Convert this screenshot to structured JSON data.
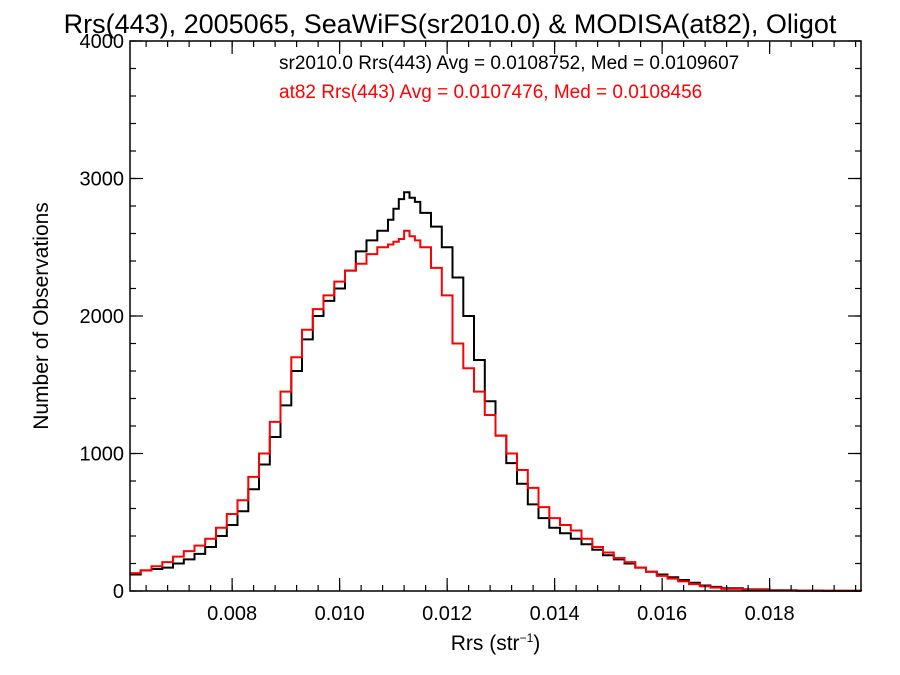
{
  "chart_data": {
    "type": "line",
    "title": "Rrs(443), 2005065, SeaWiFS(sr2010.0) & MODISA(at82), Oligot",
    "xlabel": "Rrs (str",
    "xlabel_superscript": "−1",
    "xlabel_suffix": ")",
    "ylabel": "Number of Observations",
    "xlim": [
      0.0061,
      0.0197
    ],
    "ylim": [
      0,
      4000
    ],
    "x_ticks": [
      0.008,
      0.01,
      0.012,
      0.014,
      0.016,
      0.018
    ],
    "x_tick_labels": [
      "0.008",
      "0.010",
      "0.012",
      "0.014",
      "0.016",
      "0.018"
    ],
    "y_ticks": [
      0,
      1000,
      2000,
      3000,
      4000
    ],
    "y_tick_labels": [
      "0",
      "1000",
      "2000",
      "3000",
      "4000"
    ],
    "grid": false,
    "series": [
      {
        "name": "sr2010.0",
        "color": "#000000",
        "label": "sr2010.0 Rrs(443) Avg = 0.0108752, Med = 0.0109607",
        "x": [
          0.0061,
          0.0063,
          0.0065,
          0.0067,
          0.0069,
          0.0071,
          0.0073,
          0.0075,
          0.0077,
          0.0079,
          0.0081,
          0.0083,
          0.0085,
          0.0087,
          0.0089,
          0.0091,
          0.0093,
          0.0095,
          0.0097,
          0.0099,
          0.0101,
          0.0103,
          0.0105,
          0.0107,
          0.0109,
          0.011,
          0.0111,
          0.0112,
          0.0113,
          0.0114,
          0.0115,
          0.0117,
          0.0119,
          0.0121,
          0.0123,
          0.0125,
          0.0127,
          0.0129,
          0.0131,
          0.0133,
          0.0135,
          0.0137,
          0.0139,
          0.0141,
          0.0143,
          0.0145,
          0.0147,
          0.0149,
          0.0151,
          0.0153,
          0.0155,
          0.0157,
          0.0159,
          0.0161,
          0.0163,
          0.0165,
          0.0167,
          0.0169,
          0.0171,
          0.0175,
          0.018,
          0.0185,
          0.019,
          0.0197
        ],
        "y": [
          120,
          150,
          160,
          170,
          200,
          230,
          270,
          320,
          400,
          480,
          580,
          740,
          920,
          1120,
          1350,
          1600,
          1830,
          2000,
          2110,
          2200,
          2330,
          2470,
          2550,
          2620,
          2700,
          2780,
          2850,
          2900,
          2860,
          2830,
          2750,
          2650,
          2500,
          2280,
          2000,
          1680,
          1380,
          1130,
          930,
          780,
          630,
          530,
          460,
          420,
          380,
          340,
          300,
          260,
          230,
          200,
          170,
          140,
          120,
          100,
          80,
          60,
          40,
          30,
          20,
          12,
          6,
          3,
          2,
          1
        ]
      },
      {
        "name": "at82",
        "color": "#ff0000",
        "label": "at82 Rrs(443) Avg = 0.0107476, Med = 0.0108456",
        "x": [
          0.0061,
          0.0063,
          0.0065,
          0.0067,
          0.0069,
          0.0071,
          0.0073,
          0.0075,
          0.0077,
          0.0079,
          0.0081,
          0.0083,
          0.0085,
          0.0087,
          0.0089,
          0.0091,
          0.0093,
          0.0095,
          0.0097,
          0.0099,
          0.0101,
          0.0103,
          0.0105,
          0.0107,
          0.0109,
          0.011,
          0.0111,
          0.0112,
          0.0113,
          0.0114,
          0.0115,
          0.0117,
          0.0119,
          0.0121,
          0.0123,
          0.0125,
          0.0127,
          0.0129,
          0.0131,
          0.0133,
          0.0135,
          0.0137,
          0.0139,
          0.0141,
          0.0143,
          0.0145,
          0.0147,
          0.0149,
          0.0151,
          0.0153,
          0.0155,
          0.0157,
          0.0159,
          0.0161,
          0.0163,
          0.0165,
          0.0167,
          0.0169,
          0.0171,
          0.0175,
          0.018,
          0.0185,
          0.019,
          0.0197
        ],
        "y": [
          130,
          150,
          180,
          210,
          250,
          290,
          330,
          380,
          460,
          560,
          660,
          830,
          1000,
          1230,
          1450,
          1700,
          1900,
          2050,
          2150,
          2250,
          2330,
          2380,
          2450,
          2500,
          2520,
          2540,
          2560,
          2620,
          2580,
          2550,
          2500,
          2350,
          2150,
          1800,
          1620,
          1450,
          1280,
          1130,
          1000,
          880,
          750,
          610,
          530,
          480,
          440,
          380,
          320,
          280,
          240,
          210,
          170,
          140,
          110,
          90,
          70,
          50,
          35,
          25,
          15,
          8,
          4,
          2,
          1,
          1
        ]
      }
    ]
  }
}
